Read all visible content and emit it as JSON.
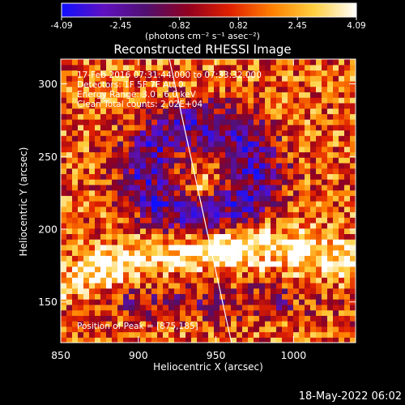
{
  "colorbar": {
    "vmin": -4.09,
    "vmax": 4.09,
    "ticks": [
      "-4.09",
      "-2.45",
      "-0.82",
      "0.82",
      "2.45",
      "4.09"
    ],
    "units": "(photons cm⁻² s⁻¹ asec⁻²)",
    "colors": [
      "#1010ff",
      "#6010c0",
      "#501070",
      "#900020",
      "#e02000",
      "#ff8000",
      "#ffd040",
      "#ffffff"
    ]
  },
  "info": {
    "line1": "17-Feb-2016 07:31:44.000 to 07:33:32.000",
    "line2": "Detectors: 1F 5F 7F Att 0",
    "line3": "Energy Range: 3.0 - 6.0 keV",
    "line4": "Clean     Total counts: 2.02E+04",
    "peak": "Position of Peak = [875,185]"
  },
  "footer": {
    "timestamp": "18-May-2022 06:02"
  },
  "chart_data": {
    "type": "heatmap",
    "title": "Reconstructed RHESSI Image",
    "xlabel": "Heliocentric X (arcsec)",
    "ylabel": "Heliocentric Y (arcsec)",
    "xlim": [
      850,
      1040
    ],
    "ylim": [
      122,
      317
    ],
    "xticks": [
      850,
      900,
      950,
      1000
    ],
    "yticks": [
      150,
      200,
      250,
      300
    ],
    "x_tick_labels": [
      "850",
      "900",
      "950",
      "1000"
    ],
    "y_tick_labels": [
      "150",
      "200",
      "250",
      "300"
    ],
    "peak_position": [
      875,
      185
    ],
    "limb_line": [
      [
        920,
        317
      ],
      [
        960,
        122
      ]
    ],
    "grid": false
  }
}
